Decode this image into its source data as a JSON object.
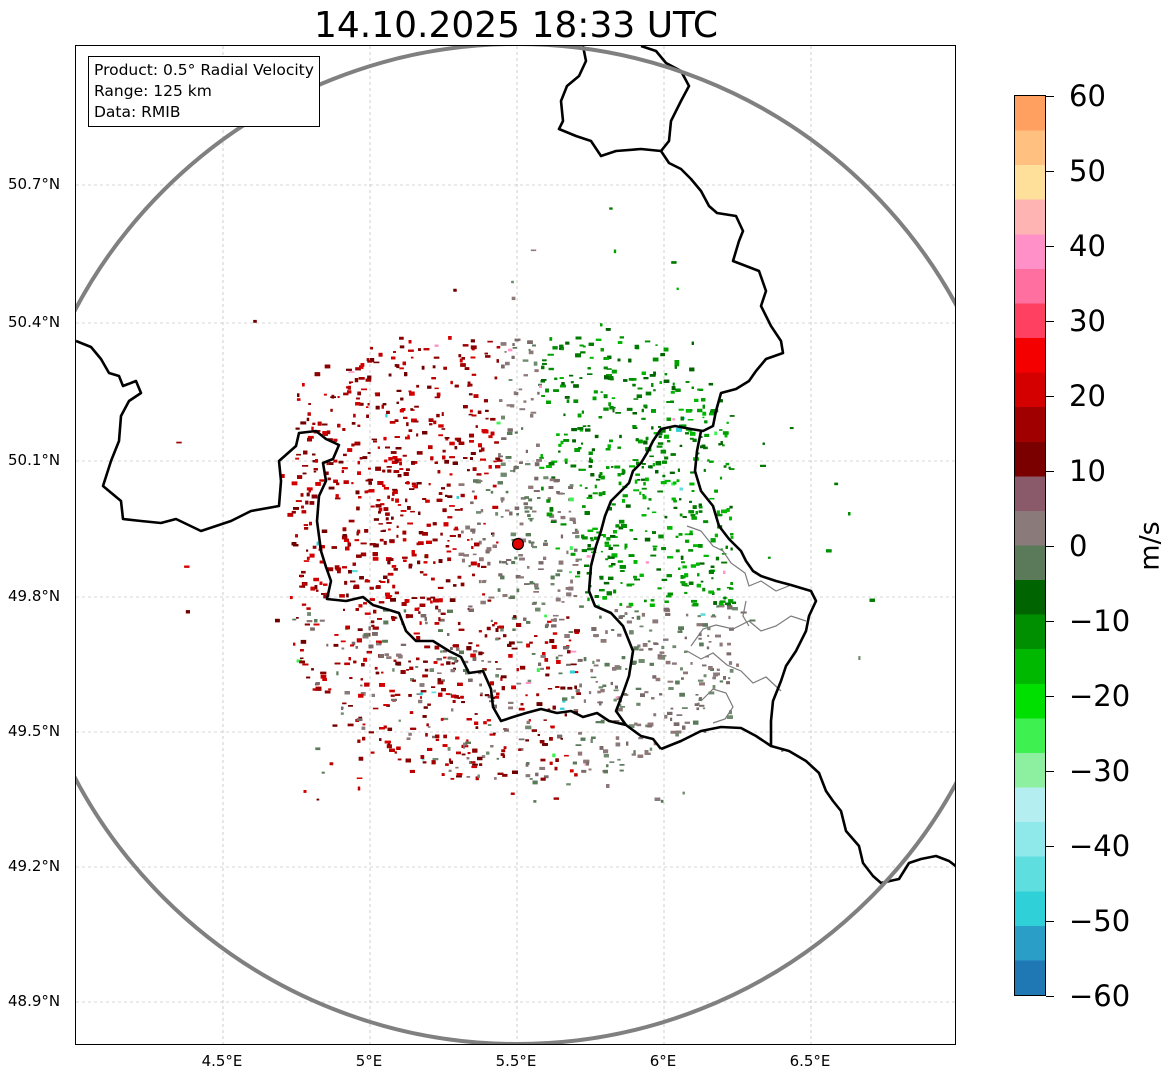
{
  "title": "14.10.2025 18:33 UTC",
  "info": {
    "product": "Product: 0.5° Radial Velocity",
    "range": "Range: 125 km",
    "source": "Data: RMIB"
  },
  "lat_labels": [
    "50.7°N",
    "50.4°N",
    "50.1°N",
    "49.8°N",
    "49.5°N",
    "49.2°N",
    "48.9°N"
  ],
  "lon_labels": [
    "4.5°E",
    "5°E",
    "5.5°E",
    "6°E",
    "6.5°E"
  ],
  "colorbar": {
    "unit": "m/s",
    "ticks": [
      "60",
      "50",
      "40",
      "30",
      "20",
      "10",
      "0",
      "−10",
      "−20",
      "−30",
      "−40",
      "−50",
      "−60"
    ],
    "colors": [
      "#1f77b4",
      "#2b9ec7",
      "#2fd0d8",
      "#5fdedf",
      "#8fe8ea",
      "#b4eef0",
      "#8cf0a0",
      "#3ef050",
      "#00e000",
      "#00b800",
      "#008f00",
      "#006400",
      "#5a7a5a",
      "#8a7a7a",
      "#8a5a6a",
      "#7a0000",
      "#a00000",
      "#d40000",
      "#f40000",
      "#ff4060",
      "#ff70a0",
      "#ff90c8",
      "#ffb4b4",
      "#ffe09a",
      "#ffc080",
      "#ffa060"
    ],
    "range": [
      -60,
      60
    ]
  },
  "map": {
    "radar_site": "radar-site-marker",
    "coverage_ring": "125 km range ring",
    "colors": {
      "ring": "#808080",
      "border": "#000000",
      "grid": "#b0b0b0",
      "site": "#e00000"
    }
  }
}
